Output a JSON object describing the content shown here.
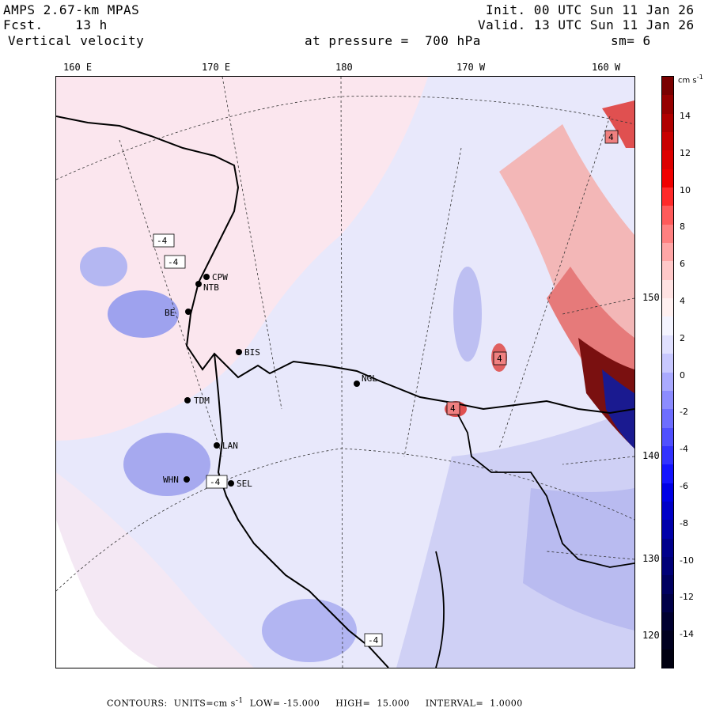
{
  "header": {
    "model": "AMPS 2.67-km MPAS",
    "forecast_label": "Fcst.",
    "forecast_value": "13 h",
    "field": "Vertical velocity",
    "init": "Init. 00 UTC Sun 11 Jan 26",
    "valid": "Valid. 13 UTC Sun 11 Jan 26",
    "pressure_label": "at pressure =",
    "pressure_value": "700 hPa",
    "smoothing": "sm= 6"
  },
  "axes": {
    "top_ticks": [
      "160 E",
      "170 E",
      "180",
      "170 W",
      "160 W"
    ],
    "right_ticks": [
      "150 W",
      "140 W",
      "130 W",
      "120 W"
    ]
  },
  "stations": [
    {
      "code": "CPW"
    },
    {
      "code": "NTB"
    },
    {
      "code": "BE"
    },
    {
      "code": "BIS"
    },
    {
      "code": "NGL"
    },
    {
      "code": "TDM"
    },
    {
      "code": "LAN"
    },
    {
      "code": "WHN"
    },
    {
      "code": "SEL"
    }
  ],
  "extrema_labels": [
    "4",
    "-4",
    "-4",
    "-4",
    "4",
    "4",
    "-4"
  ],
  "colorbar": {
    "units": "cm s",
    "units_exp": "-1",
    "labels": [
      "14",
      "12",
      "10",
      "8",
      "6",
      "4",
      "2",
      "0",
      "-2",
      "-4",
      "-6",
      "-8",
      "-10",
      "-12",
      "-14"
    ],
    "colors": [
      "#7a0000",
      "#960000",
      "#b00000",
      "#c80000",
      "#dd0000",
      "#f00000",
      "#ff2a2a",
      "#ff5a5a",
      "#ff8080",
      "#ffa6a6",
      "#ffc8c8",
      "#ffe2e2",
      "#fff0f0",
      "#f4f4ff",
      "#e0e0ff",
      "#c8c8ff",
      "#aaaaff",
      "#8c8cff",
      "#6e6eff",
      "#5050ff",
      "#3232ff",
      "#1414ff",
      "#0000e6",
      "#0000c8",
      "#0000aa",
      "#00008c",
      "#000078",
      "#000060",
      "#000048",
      "#000030",
      "#000020",
      "#000010"
    ]
  },
  "footer": {
    "contours_label": "CONTOURS:",
    "units_label": "UNITS=cm s",
    "units_exp": "-1",
    "low_label": "LOW=",
    "low_value": "-15.000",
    "high_label": "HIGH=",
    "high_value": "15.000",
    "interval_label": "INTERVAL=",
    "interval_value": "1.0000"
  }
}
